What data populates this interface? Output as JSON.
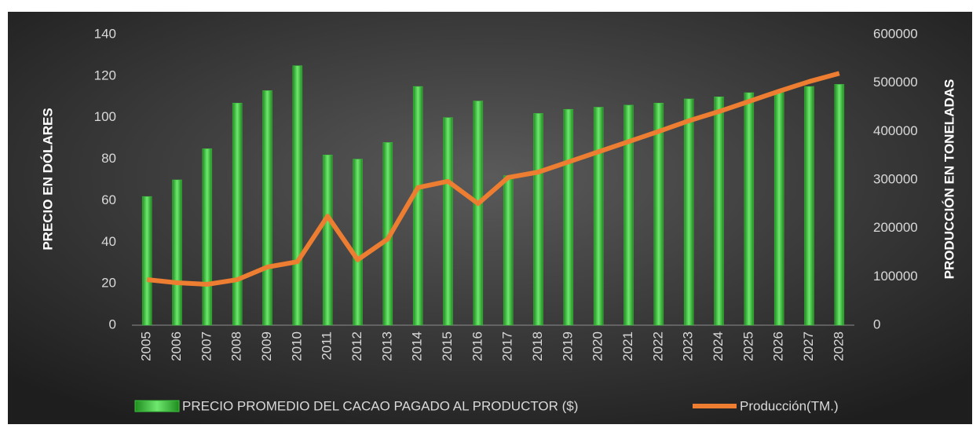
{
  "chart_data": {
    "type": "bar_line",
    "y_title": "PRECIO EN DÓLARES",
    "y2_title": "PRODUCCIÓN EN TONELADAS",
    "categories": [
      "2005",
      "2006",
      "2007",
      "2008",
      "2009",
      "2010",
      "2011",
      "2012",
      "2013",
      "2014",
      "2015",
      "2016",
      "2017",
      "2018",
      "2019",
      "2020",
      "2021",
      "2022",
      "2023",
      "2024",
      "2025",
      "2026",
      "2027",
      "2028"
    ],
    "series": [
      {
        "name": "PRECIO PROMEDIO DEL CACAO PAGADO AL PRODUCTOR ($)",
        "type": "bar",
        "color": "#3cc43c",
        "values": [
          62,
          70,
          85,
          107,
          113,
          125,
          82,
          80,
          88,
          115,
          100,
          108,
          72,
          102,
          104,
          105,
          106,
          107,
          109,
          110,
          112,
          113,
          115,
          116
        ]
      },
      {
        "name": "Producción(TM.)",
        "type": "line",
        "axis": "y2",
        "color": "#ed7d31",
        "values": [
          94000,
          87600,
          84300,
          94000,
          120000,
          131000,
          225000,
          135000,
          178000,
          284000,
          297000,
          251000,
          305000,
          316000,
          337000,
          358000,
          379000,
          400000,
          422000,
          441000,
          462000,
          483000,
          503000,
          520000
        ]
      }
    ],
    "ylim": [
      0,
      140
    ],
    "yticks": [
      0,
      20,
      40,
      60,
      80,
      100,
      120,
      140
    ],
    "y2lim": [
      0,
      600000
    ],
    "y2ticks": [
      0,
      100000,
      200000,
      300000,
      400000,
      500000,
      600000
    ],
    "grid": false
  }
}
